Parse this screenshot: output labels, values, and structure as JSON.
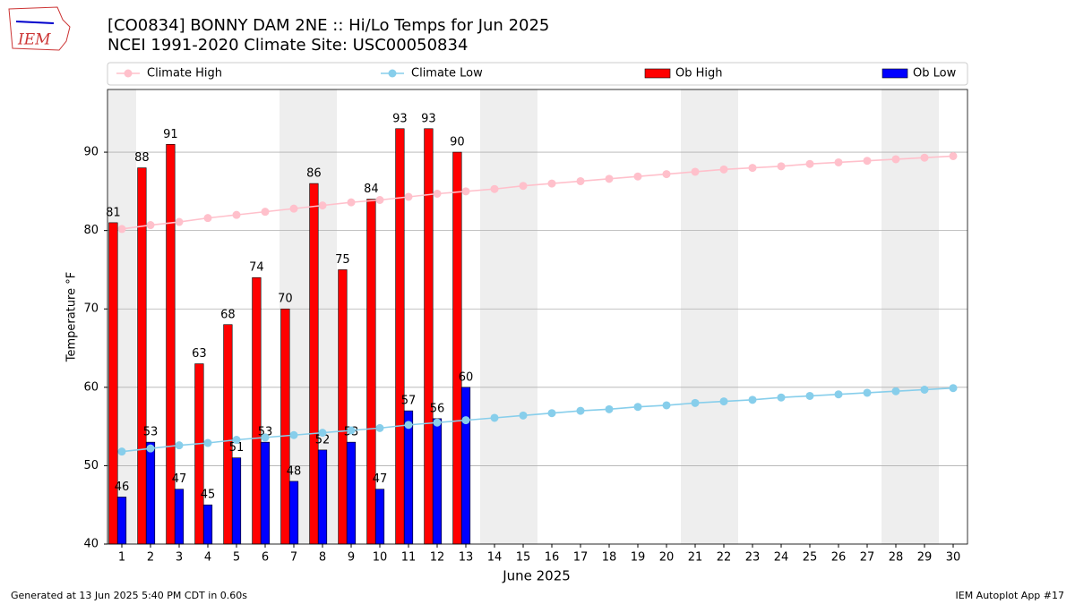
{
  "chart_data": {
    "type": "bar",
    "title": "[CO0834] BONNY DAM 2NE :: Hi/Lo Temps for Jun 2025",
    "subtitle": "NCEI 1991-2020 Climate Site: USC00050834",
    "xlabel": "June 2025",
    "ylabel": "Temperature °F",
    "categories": [
      "1",
      "2",
      "3",
      "4",
      "5",
      "6",
      "7",
      "8",
      "9",
      "10",
      "11",
      "12",
      "13",
      "14",
      "15",
      "16",
      "17",
      "18",
      "19",
      "20",
      "21",
      "22",
      "23",
      "24",
      "25",
      "26",
      "27",
      "28",
      "29",
      "30"
    ],
    "series": [
      {
        "name": "Climate High",
        "type": "line",
        "color": "#ffc0cb",
        "values": [
          80.2,
          80.7,
          81.1,
          81.6,
          82.0,
          82.4,
          82.8,
          83.2,
          83.6,
          83.9,
          84.3,
          84.7,
          85.0,
          85.3,
          85.7,
          86.0,
          86.3,
          86.6,
          86.9,
          87.2,
          87.5,
          87.8,
          88.0,
          88.2,
          88.5,
          88.7,
          88.9,
          89.1,
          89.3,
          89.5
        ]
      },
      {
        "name": "Climate Low",
        "type": "line",
        "color": "#87ceeb",
        "values": [
          51.8,
          52.2,
          52.6,
          52.9,
          53.3,
          53.6,
          53.9,
          54.2,
          54.5,
          54.8,
          55.2,
          55.5,
          55.8,
          56.1,
          56.4,
          56.7,
          57.0,
          57.2,
          57.5,
          57.7,
          58.0,
          58.2,
          58.4,
          58.7,
          58.9,
          59.1,
          59.3,
          59.5,
          59.7,
          59.9
        ]
      },
      {
        "name": "Ob High",
        "type": "bar",
        "color": "#ff0000",
        "values": [
          81,
          88,
          91,
          63,
          68,
          74,
          70,
          86,
          75,
          84,
          93,
          93,
          90,
          null,
          null,
          null,
          null,
          null,
          null,
          null,
          null,
          null,
          null,
          null,
          null,
          null,
          null,
          null,
          null,
          null
        ]
      },
      {
        "name": "Ob Low",
        "type": "bar",
        "color": "#0000ff",
        "values": [
          46,
          53,
          47,
          45,
          51,
          53,
          48,
          52,
          53,
          47,
          57,
          56,
          60,
          null,
          null,
          null,
          null,
          null,
          null,
          null,
          null,
          null,
          null,
          null,
          null,
          null,
          null,
          null,
          null,
          null
        ]
      }
    ],
    "ylim": [
      40,
      98
    ],
    "yticks": [
      40,
      50,
      60,
      70,
      80,
      90
    ],
    "grid": true
  },
  "logo_text": "IEM",
  "footer": {
    "left": "Generated at 13 Jun 2025 5:40 PM CDT in 0.60s",
    "right": "IEM Autoplot App #17"
  }
}
